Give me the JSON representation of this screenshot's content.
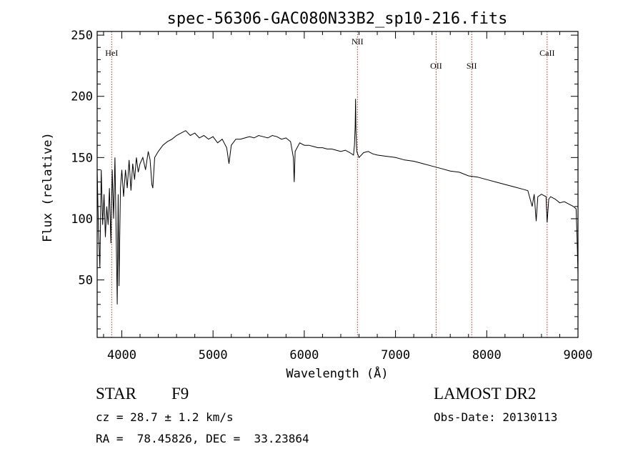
{
  "chart_data": {
    "type": "line",
    "title": "spec-56306-GAC080N33B2_sp10-216.fits",
    "xlabel": "Wavelength (Å)",
    "ylabel": "Flux (relative)",
    "xlim": [
      3730,
      9000
    ],
    "ylim": [
      3,
      253
    ],
    "x_ticks": [
      4000,
      5000,
      6000,
      7000,
      8000,
      9000
    ],
    "y_ticks": [
      50,
      100,
      150,
      200,
      250
    ],
    "grid": false,
    "series": [
      {
        "color": "#000000",
        "points": [
          [
            3730,
            140
          ],
          [
            3745,
            90
          ],
          [
            3760,
            60
          ],
          [
            3775,
            140
          ],
          [
            3790,
            95
          ],
          [
            3805,
            120
          ],
          [
            3820,
            85
          ],
          [
            3835,
            110
          ],
          [
            3850,
            95
          ],
          [
            3865,
            125
          ],
          [
            3880,
            80
          ],
          [
            3895,
            140
          ],
          [
            3910,
            100
          ],
          [
            3925,
            150
          ],
          [
            3940,
            80
          ],
          [
            3950,
            30
          ],
          [
            3960,
            120
          ],
          [
            3970,
            45
          ],
          [
            3985,
            125
          ],
          [
            4000,
            140
          ],
          [
            4020,
            118
          ],
          [
            4040,
            140
          ],
          [
            4060,
            125
          ],
          [
            4080,
            148
          ],
          [
            4100,
            123
          ],
          [
            4120,
            145
          ],
          [
            4140,
            132
          ],
          [
            4160,
            150
          ],
          [
            4180,
            138
          ],
          [
            4200,
            145
          ],
          [
            4230,
            150
          ],
          [
            4260,
            140
          ],
          [
            4290,
            155
          ],
          [
            4310,
            148
          ],
          [
            4330,
            128
          ],
          [
            4340,
            125
          ],
          [
            4360,
            150
          ],
          [
            4400,
            155
          ],
          [
            4450,
            160
          ],
          [
            4500,
            163
          ],
          [
            4550,
            165
          ],
          [
            4600,
            168
          ],
          [
            4650,
            170
          ],
          [
            4700,
            172
          ],
          [
            4750,
            168
          ],
          [
            4800,
            170
          ],
          [
            4850,
            166
          ],
          [
            4900,
            168
          ],
          [
            4950,
            165
          ],
          [
            5000,
            167
          ],
          [
            5050,
            162
          ],
          [
            5100,
            165
          ],
          [
            5150,
            158
          ],
          [
            5175,
            145
          ],
          [
            5200,
            160
          ],
          [
            5250,
            165
          ],
          [
            5300,
            165
          ],
          [
            5350,
            166
          ],
          [
            5400,
            167
          ],
          [
            5450,
            166
          ],
          [
            5500,
            168
          ],
          [
            5550,
            167
          ],
          [
            5600,
            166
          ],
          [
            5650,
            168
          ],
          [
            5700,
            167
          ],
          [
            5750,
            165
          ],
          [
            5800,
            166
          ],
          [
            5850,
            163
          ],
          [
            5880,
            150
          ],
          [
            5890,
            130
          ],
          [
            5900,
            155
          ],
          [
            5950,
            162
          ],
          [
            6000,
            160
          ],
          [
            6050,
            160
          ],
          [
            6100,
            159
          ],
          [
            6150,
            158
          ],
          [
            6200,
            158
          ],
          [
            6250,
            157
          ],
          [
            6300,
            157
          ],
          [
            6350,
            156
          ],
          [
            6400,
            155
          ],
          [
            6450,
            156
          ],
          [
            6500,
            154
          ],
          [
            6540,
            152
          ],
          [
            6550,
            160
          ],
          [
            6558,
            175
          ],
          [
            6562,
            198
          ],
          [
            6566,
            172
          ],
          [
            6575,
            155
          ],
          [
            6600,
            150
          ],
          [
            6650,
            154
          ],
          [
            6700,
            155
          ],
          [
            6750,
            153
          ],
          [
            6800,
            152
          ],
          [
            6900,
            151
          ],
          [
            7000,
            150
          ],
          [
            7100,
            148
          ],
          [
            7200,
            147
          ],
          [
            7300,
            145
          ],
          [
            7400,
            143
          ],
          [
            7500,
            141
          ],
          [
            7600,
            139
          ],
          [
            7700,
            138
          ],
          [
            7800,
            135
          ],
          [
            7900,
            134
          ],
          [
            8000,
            132
          ],
          [
            8100,
            130
          ],
          [
            8200,
            128
          ],
          [
            8300,
            126
          ],
          [
            8400,
            124
          ],
          [
            8450,
            123
          ],
          [
            8498,
            110
          ],
          [
            8520,
            120
          ],
          [
            8542,
            98
          ],
          [
            8560,
            118
          ],
          [
            8600,
            120
          ],
          [
            8650,
            118
          ],
          [
            8662,
            97
          ],
          [
            8680,
            116
          ],
          [
            8700,
            118
          ],
          [
            8750,
            116
          ],
          [
            8800,
            113
          ],
          [
            8850,
            114
          ],
          [
            8900,
            112
          ],
          [
            8950,
            110
          ],
          [
            8980,
            108
          ],
          [
            8990,
            85
          ],
          [
            9000,
            55
          ]
        ]
      }
    ],
    "lines": [
      {
        "label": "HeI",
        "x": 3889
      },
      {
        "label": "NII",
        "x": 6583
      },
      {
        "label": "OII",
        "x": 7445
      },
      {
        "label": "SII",
        "x": 7835
      },
      {
        "label": "CaII",
        "x": 8662
      }
    ]
  },
  "footer": {
    "object_type": "STAR",
    "subclass": "F9",
    "survey": "LAMOST DR2",
    "redshift_line": "cz = 28.7 ± 1.2 km/s",
    "obs_date_line": "Obs-Date: 20130113",
    "coords_line": "RA =  78.45826, DEC =  33.23864"
  },
  "colors": {
    "spectrum": "#000000",
    "line_markers": "#a0302e",
    "axes": "#000000",
    "background": "#ffffff"
  }
}
